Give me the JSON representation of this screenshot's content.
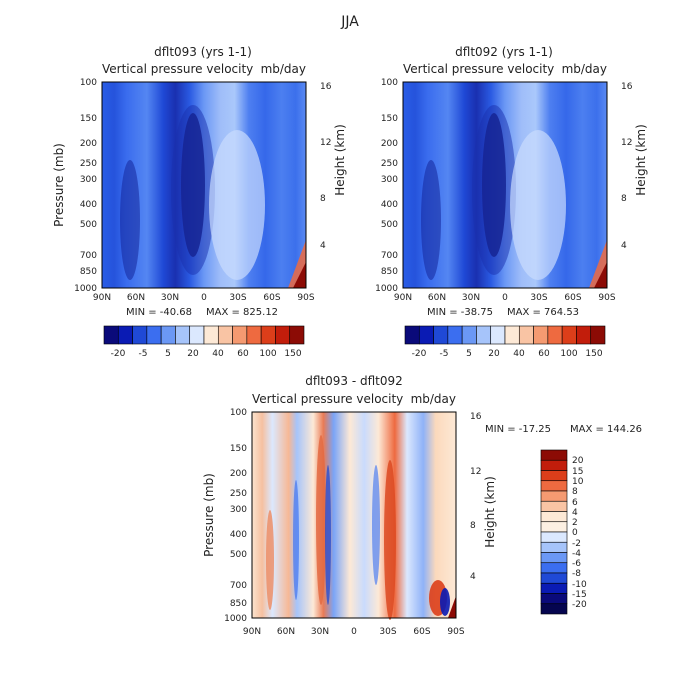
{
  "figure_title": "JJA",
  "chart_data": [
    {
      "type": "heatmap",
      "title": "dflt093 (yrs 1-1)",
      "subtitle_left": "Vertical pressure velocity",
      "subtitle_right": "mb/day",
      "ylabel": "Pressure (mb)",
      "y2label": "Height (km)",
      "min_text": "MIN = -40.68",
      "max_text": "MAX = 825.12",
      "x_ticks": [
        "90N",
        "60N",
        "30N",
        "0",
        "30S",
        "60S",
        "90S"
      ],
      "pressure_ticks": [
        "100",
        "150",
        "200",
        "250",
        "300",
        "400",
        "500",
        "700",
        "850",
        "1000"
      ],
      "height_ticks": [
        "16",
        "12",
        "8",
        "4"
      ],
      "colorbar_labels": [
        "-20",
        "-5",
        "5",
        "20",
        "40",
        "60",
        "100",
        "150"
      ],
      "colorbar_colors": [
        "#0a0a7a",
        "#0a1bb4",
        "#1f49d6",
        "#3b6ef0",
        "#6b98f5",
        "#a6c4fa",
        "#dbe8fe",
        "#fde9d6",
        "#f9c4a4",
        "#f59a71",
        "#ee6a40",
        "#dc3e1a",
        "#c21d0b",
        "#8c0b05"
      ]
    },
    {
      "type": "heatmap",
      "title": "dflt092 (yrs 1-1)",
      "subtitle_left": "Vertical pressure velocity",
      "subtitle_right": "mb/day",
      "ylabel": "",
      "y2label": "Height (km)",
      "min_text": "MIN = -38.75",
      "max_text": "MAX = 764.53",
      "x_ticks": [
        "90N",
        "60N",
        "30N",
        "0",
        "30S",
        "60S",
        "90S"
      ],
      "pressure_ticks": [
        "100",
        "150",
        "200",
        "250",
        "300",
        "400",
        "500",
        "700",
        "850",
        "1000"
      ],
      "height_ticks": [
        "16",
        "12",
        "8",
        "4"
      ],
      "colorbar_labels": [
        "-20",
        "-5",
        "5",
        "20",
        "40",
        "60",
        "100",
        "150"
      ],
      "colorbar_colors": [
        "#0a0a7a",
        "#0a1bb4",
        "#1f49d6",
        "#3b6ef0",
        "#6b98f5",
        "#a6c4fa",
        "#dbe8fe",
        "#fde9d6",
        "#f9c4a4",
        "#f59a71",
        "#ee6a40",
        "#dc3e1a",
        "#c21d0b",
        "#8c0b05"
      ]
    },
    {
      "type": "heatmap",
      "title": "dflt093 - dflt092",
      "subtitle_left": "Vertical pressure velocity",
      "subtitle_right": "mb/day",
      "ylabel": "Pressure (mb)",
      "y2label": "Height (km)",
      "min_text": "MIN = -17.25",
      "max_text": "MAX = 144.26",
      "x_ticks": [
        "90N",
        "60N",
        "30N",
        "0",
        "30S",
        "60S",
        "90S"
      ],
      "pressure_ticks": [
        "100",
        "150",
        "200",
        "250",
        "300",
        "400",
        "500",
        "700",
        "850",
        "1000"
      ],
      "height_ticks": [
        "16",
        "12",
        "8",
        "4"
      ],
      "colorbar_labels": [
        "20",
        "15",
        "10",
        "8",
        "6",
        "4",
        "2",
        "0",
        "-2",
        "-4",
        "-6",
        "-8",
        "-10",
        "-15",
        "-20"
      ],
      "colorbar_colors": [
        "#8c0b05",
        "#c21d0b",
        "#dc3e1a",
        "#ee6a40",
        "#f59a71",
        "#f9c4a4",
        "#fde9d6",
        "#fdf0e2",
        "#dbe8fe",
        "#a6c4fa",
        "#6b98f5",
        "#3b6ef0",
        "#1f49d6",
        "#0a1bb4",
        "#0a0a7a",
        "#05054f"
      ]
    }
  ]
}
